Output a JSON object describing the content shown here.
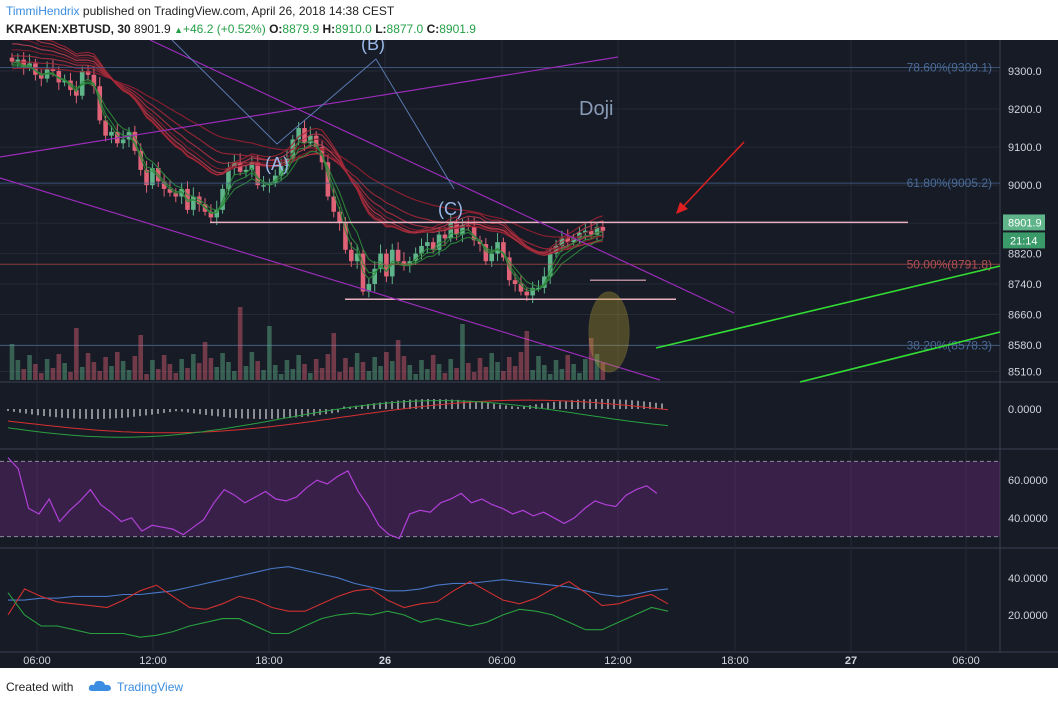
{
  "header": {
    "author": "TimmiHendrix",
    "published": "published on TradingView.com, April 26, 2018 14:38 CEST",
    "symbol": "KRAKEN:XBTUSD, 30",
    "last": "8901.9",
    "change": "+46.2 (+0.52%)",
    "o_label": "O:",
    "o_val": "8879.9",
    "h_label": "H:",
    "h_val": "8910.0",
    "l_label": "L:",
    "l_val": "8877.0",
    "c_label": "C:",
    "c_val": "8901.9"
  },
  "footer": {
    "created": "Created with",
    "brand": "TradingView"
  },
  "colors": {
    "bg": "#161b26",
    "bull": "#5fb48a",
    "bear": "#e06276",
    "fib": "#4a6a96",
    "fib50": "#b45050",
    "grid": "#242a36",
    "rsi": "#a040c8"
  },
  "chart_data": [
    {
      "type": "candlestick",
      "ylim": [
        8510,
        9360
      ],
      "y_ticks": [
        9300,
        9200,
        9100,
        9000,
        8900,
        8820,
        8740,
        8660,
        8580,
        8510
      ],
      "x_ticks": [
        "06:00",
        "12:00",
        "18:00",
        "26",
        "06:00",
        "12:00",
        "18:00",
        "27",
        "06:00"
      ],
      "price_label": "8901.9",
      "time_label": "21:14",
      "annotations": [
        "(A)",
        "(B)",
        "(C)",
        "Doji"
      ],
      "fib_levels": [
        {
          "label": "78.60%(9309.1)",
          "value": 9309.1
        },
        {
          "label": "61.80%(9005.2)",
          "value": 9005.2
        },
        {
          "label": "50.00%(8791.8)",
          "value": 8791.8
        },
        {
          "label": "38.20%(8578.3)",
          "value": 8578.3
        }
      ],
      "support_resistance": [
        8901.9,
        8700
      ]
    },
    {
      "type": "line",
      "name": "",
      "y_ticks": [
        "0.0000"
      ]
    },
    {
      "type": "line",
      "name": "",
      "y_ticks": [
        "60.0000",
        "40.0000"
      ],
      "ylim": [
        25,
        75
      ]
    },
    {
      "type": "line",
      "name": "",
      "y_ticks": [
        "40.0000",
        "20.0000"
      ],
      "ylim": [
        0,
        55
      ]
    }
  ]
}
